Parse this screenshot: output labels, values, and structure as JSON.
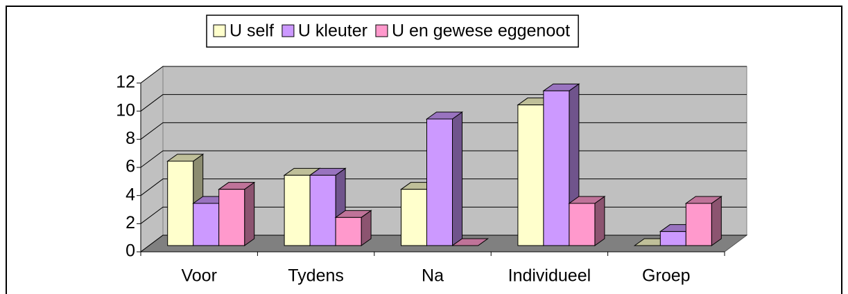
{
  "chart_data": {
    "type": "bar3d",
    "categories": [
      "Voor",
      "Tydens",
      "Na",
      "Individueel",
      "Groep"
    ],
    "series": [
      {
        "name": "U self",
        "color": "#ffffcc",
        "values": [
          6,
          5,
          4,
          10,
          0
        ]
      },
      {
        "name": "U kleuter",
        "color": "#cc99ff",
        "values": [
          3,
          5,
          9,
          11,
          1
        ]
      },
      {
        "name": "U en gewese eggenoot",
        "color": "#ff99cc",
        "values": [
          4,
          2,
          0,
          3,
          3
        ]
      }
    ],
    "ylim": [
      0,
      12
    ],
    "yticks": [
      0,
      2,
      4,
      6,
      8,
      10,
      12
    ],
    "grid": true,
    "legend": "top"
  }
}
